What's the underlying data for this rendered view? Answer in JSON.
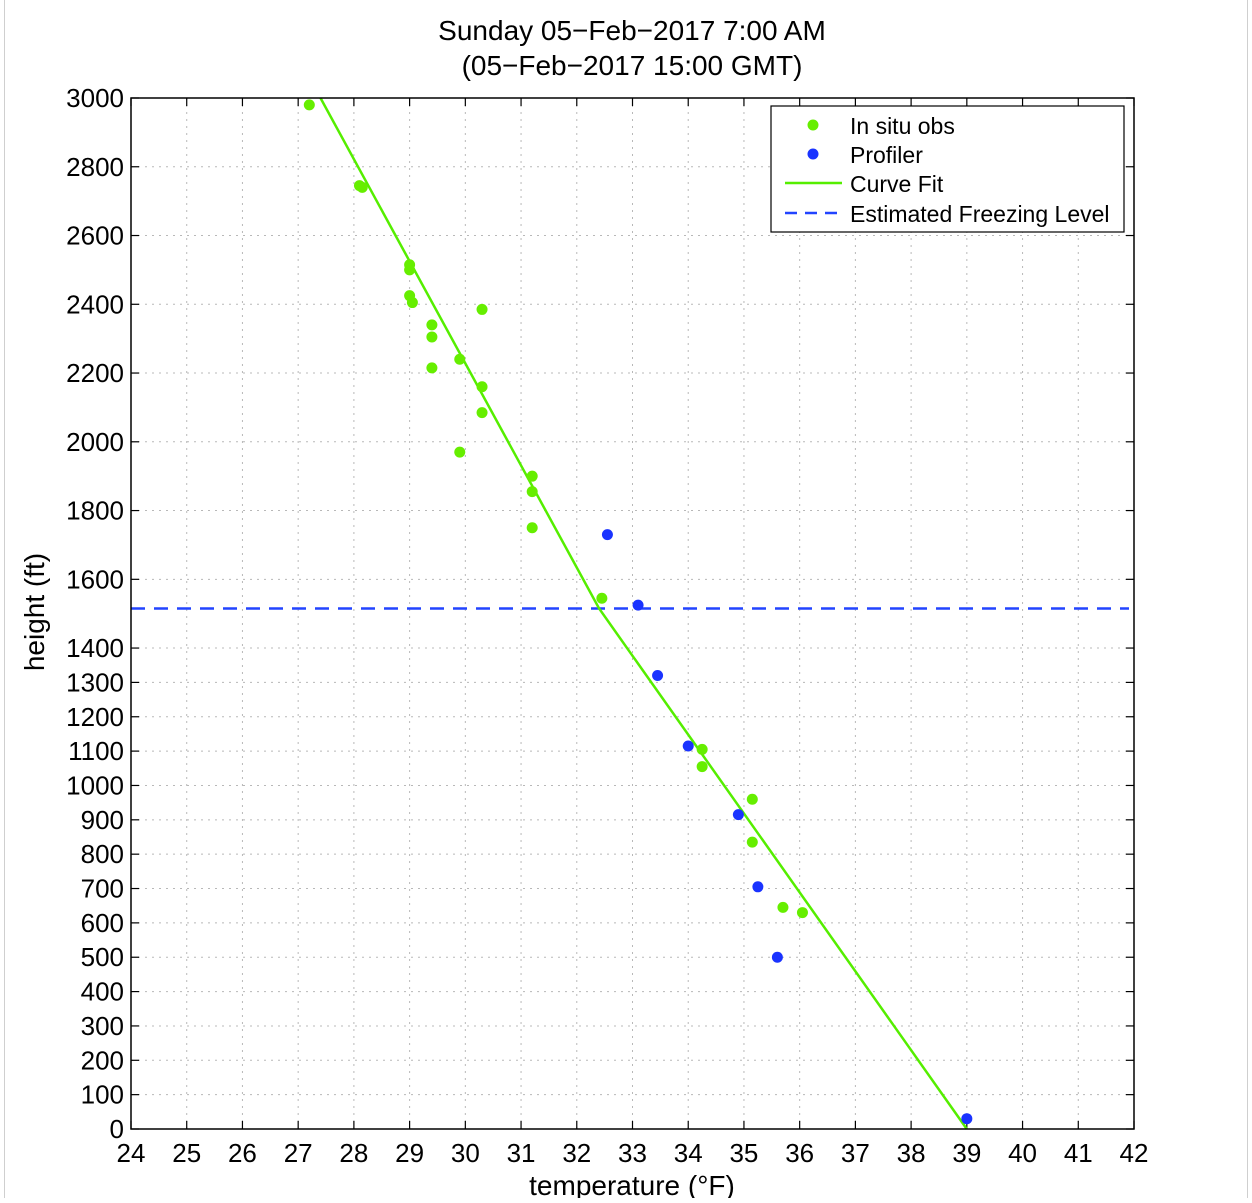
{
  "chart_data": {
    "type": "scatter",
    "title_line1": "Sunday 05−Feb−2017  7:00 AM",
    "title_line2": "(05−Feb−2017 15:00 GMT)",
    "xlabel": "temperature (°F)",
    "ylabel": "height (ft)",
    "xlim": [
      24,
      42
    ],
    "ylim": [
      0,
      3000
    ],
    "y_scale": "piecewise: 0–1500 ft compressed, 1500–3000 ft expanded",
    "grid": true,
    "legend_position": "top-right",
    "x_ticks": [
      24,
      25,
      26,
      27,
      28,
      29,
      30,
      31,
      32,
      33,
      34,
      35,
      36,
      37,
      38,
      39,
      40,
      41,
      42
    ],
    "y_ticks": [
      0,
      100,
      200,
      300,
      400,
      500,
      600,
      700,
      800,
      900,
      1000,
      1100,
      1200,
      1300,
      1400,
      1600,
      1800,
      2000,
      2200,
      2400,
      2600,
      2800,
      3000
    ],
    "legend": {
      "in_situ": "In situ obs",
      "profiler": "Profiler",
      "curve": "Curve Fit",
      "freezing": "Estimated Freezing Level"
    },
    "colors": {
      "in_situ": "#66ee00",
      "profiler": "#1a33ff",
      "curve": "#55ee00",
      "freezing": "#2244ff"
    },
    "series": [
      {
        "name": "In situ obs",
        "points": [
          [
            27.2,
            2980
          ],
          [
            28.1,
            2745
          ],
          [
            28.15,
            2740
          ],
          [
            29.0,
            2515
          ],
          [
            29.0,
            2500
          ],
          [
            29.0,
            2425
          ],
          [
            29.05,
            2405
          ],
          [
            29.4,
            2340
          ],
          [
            29.4,
            2305
          ],
          [
            29.4,
            2215
          ],
          [
            29.9,
            2240
          ],
          [
            30.3,
            2385
          ],
          [
            30.3,
            2160
          ],
          [
            30.3,
            2085
          ],
          [
            29.9,
            1970
          ],
          [
            31.2,
            1900
          ],
          [
            31.2,
            1855
          ],
          [
            31.2,
            1750
          ],
          [
            32.45,
            1545
          ],
          [
            34.25,
            1105
          ],
          [
            34.25,
            1055
          ],
          [
            35.15,
            960
          ],
          [
            35.15,
            835
          ],
          [
            35.7,
            645
          ],
          [
            36.05,
            630
          ]
        ]
      },
      {
        "name": "Profiler",
        "points": [
          [
            32.55,
            1730
          ],
          [
            33.1,
            1525
          ],
          [
            33.45,
            1320
          ],
          [
            34.0,
            1115
          ],
          [
            34.9,
            915
          ],
          [
            35.25,
            705
          ],
          [
            35.6,
            500
          ],
          [
            39.0,
            30
          ]
        ]
      }
    ],
    "curve_fit": [
      [
        27.4,
        3000
      ],
      [
        32.4,
        1515
      ],
      [
        39.0,
        0
      ]
    ],
    "freezing_level": 1515
  }
}
